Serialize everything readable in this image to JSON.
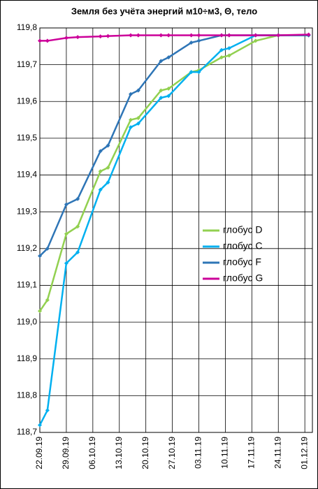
{
  "chart_data": {
    "type": "line",
    "title": "Земля без учёта энергий м10÷м3, Θ, тело",
    "x": [
      "22.09.19",
      "24.09.19",
      "29.09.19",
      "02.10.19",
      "08.10.19",
      "10.10.19",
      "16.10.19",
      "18.10.19",
      "24.10.19",
      "26.10.19",
      "01.11.19",
      "03.11.19",
      "09.11.19",
      "11.11.19",
      "18.11.19",
      "24.11.19",
      "02.12.19"
    ],
    "xlim": [
      "22.09.19",
      "03.12.19"
    ],
    "xticks": [
      "22.09.19",
      "29.09.19",
      "06.10.19",
      "13.10.19",
      "20.10.19",
      "27.10.19",
      "03.11.19",
      "10.11.19",
      "17.11.19",
      "24.11.19",
      "01.12.19"
    ],
    "ylim": [
      118.7,
      119.8
    ],
    "yticks": [
      {
        "value": 118.7,
        "label": "118,7"
      },
      {
        "value": 118.8,
        "label": "118,8"
      },
      {
        "value": 118.9,
        "label": "118,9"
      },
      {
        "value": 119.0,
        "label": "119,0"
      },
      {
        "value": 119.1,
        "label": "119,1"
      },
      {
        "value": 119.2,
        "label": "119,2"
      },
      {
        "value": 119.3,
        "label": "119,3"
      },
      {
        "value": 119.4,
        "label": "119,4"
      },
      {
        "value": 119.5,
        "label": "119,5"
      },
      {
        "value": 119.6,
        "label": "119,6"
      },
      {
        "value": 119.7,
        "label": "119,7"
      },
      {
        "value": 119.8,
        "label": "119,8"
      }
    ],
    "grid": true,
    "series": [
      {
        "name": "глобус D",
        "color": "#92d050",
        "values": [
          119.03,
          119.06,
          119.24,
          119.26,
          119.41,
          119.42,
          119.55,
          119.555,
          119.63,
          119.635,
          119.68,
          119.685,
          119.72,
          119.725,
          119.765,
          119.78,
          119.78
        ]
      },
      {
        "name": "глобус C",
        "color": "#00b0f0",
        "values": [
          118.72,
          118.76,
          119.16,
          119.19,
          119.36,
          119.38,
          119.53,
          119.54,
          119.61,
          119.615,
          119.68,
          119.68,
          119.74,
          119.745,
          119.78,
          119.78,
          119.78
        ]
      },
      {
        "name": "глобус F",
        "color": "#2e75b6",
        "values": [
          119.18,
          119.2,
          119.32,
          119.335,
          119.465,
          119.48,
          119.62,
          119.63,
          119.71,
          119.72,
          119.76,
          119.765,
          119.78,
          119.78,
          119.78,
          119.78,
          119.78
        ]
      },
      {
        "name": "глобус G",
        "color": "#cc0099",
        "values": [
          119.765,
          119.765,
          119.773,
          119.775,
          119.777,
          119.778,
          119.78,
          119.78,
          119.78,
          119.78,
          119.78,
          119.78,
          119.78,
          119.78,
          119.78,
          119.78,
          119.782
        ]
      }
    ]
  }
}
